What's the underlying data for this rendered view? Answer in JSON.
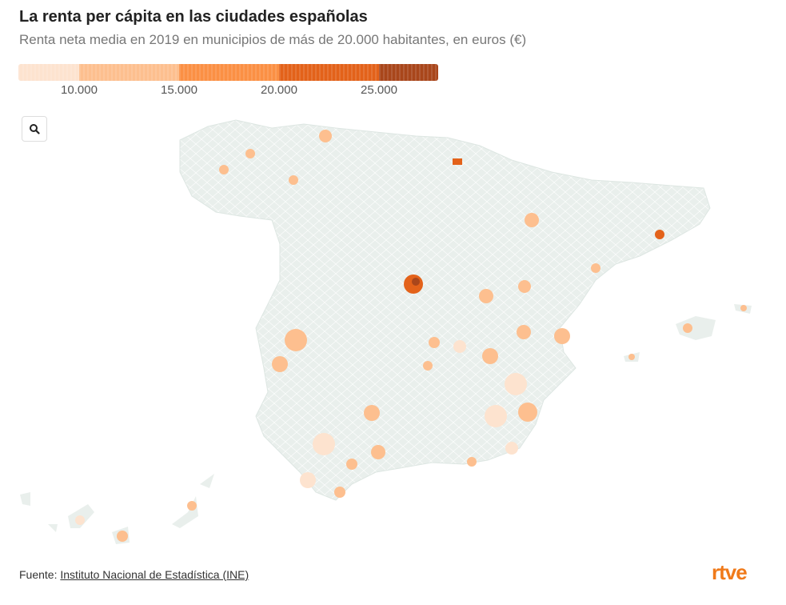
{
  "header": {
    "title": "La renta per cápita en las ciudades españolas",
    "subtitle": "Renta neta media en 2019 en municipios de más de 20.000 habitantes, en euros (€)"
  },
  "legend": {
    "ticks": [
      "10.000",
      "15.000",
      "20.000",
      "25.000"
    ],
    "colors": [
      "#fde3cf",
      "#fdbf8f",
      "#fb9044",
      "#e3621a",
      "#a9461b"
    ]
  },
  "map": {
    "base_color": "#e9efec",
    "zoom_icon": "search-icon"
  },
  "footer": {
    "source_label": "Fuente:",
    "source_link": "Instituto Nacional de Estadística (INE)",
    "logo": "rtve"
  }
}
